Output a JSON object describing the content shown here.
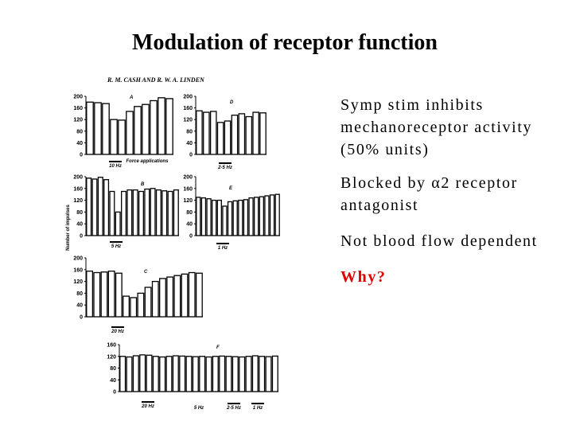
{
  "slide": {
    "title": "Modulation of receptor function",
    "figure_header": "R. M. CASH AND R. W. A. LINDEN",
    "y_axis_label": "Number of impulses",
    "bullets": [
      "Symp stim inhibits mechanoreceptor activity (50% units)",
      "Blocked by α2 receptor antagonist",
      "Not blood flow dependent",
      "Why?"
    ]
  },
  "chart_data": [
    {
      "type": "bar",
      "title": "A",
      "values": [
        180,
        178,
        175,
        120,
        118,
        148,
        165,
        172,
        185,
        195,
        192
      ],
      "ylim": [
        0,
        200
      ],
      "yticks": [
        0,
        40,
        80,
        120,
        160,
        200
      ],
      "annotations": [
        "10 Hz",
        "Force applications"
      ]
    },
    {
      "type": "bar",
      "title": "D",
      "values": [
        150,
        145,
        148,
        110,
        115,
        135,
        140,
        130,
        145,
        143
      ],
      "ylim": [
        0,
        200
      ],
      "yticks": [
        0,
        40,
        80,
        120,
        160,
        200
      ],
      "annotations": [
        "2-5 Hz"
      ]
    },
    {
      "type": "bar",
      "title": "B",
      "values": [
        195,
        192,
        198,
        190,
        150,
        80,
        150,
        155,
        155,
        150,
        158,
        160,
        155,
        152,
        150,
        155
      ],
      "ylim": [
        0,
        200
      ],
      "yticks": [
        0,
        40,
        80,
        120,
        160,
        200
      ],
      "annotations": [
        "5 Hz"
      ]
    },
    {
      "type": "bar",
      "title": "E",
      "values": [
        130,
        128,
        125,
        120,
        120,
        100,
        115,
        118,
        120,
        122,
        128,
        130,
        132,
        135,
        138,
        140
      ],
      "ylim": [
        0,
        200
      ],
      "yticks": [
        0,
        40,
        80,
        120,
        160,
        200
      ],
      "annotations": [
        "1 Hz"
      ]
    },
    {
      "type": "bar",
      "title": "C",
      "values": [
        155,
        150,
        152,
        155,
        148,
        70,
        65,
        80,
        100,
        120,
        130,
        135,
        140,
        145,
        150,
        148
      ],
      "ylim": [
        0,
        200
      ],
      "yticks": [
        0,
        40,
        80,
        120,
        160,
        200
      ],
      "annotations": [
        "20 Hz"
      ]
    },
    {
      "type": "bar",
      "title": "F",
      "values": [
        120,
        118,
        122,
        125,
        124,
        120,
        118,
        120,
        122,
        121,
        120,
        119,
        120,
        118,
        120,
        121,
        120,
        119,
        118,
        120,
        122,
        120,
        119,
        121
      ],
      "ylim": [
        0,
        160
      ],
      "yticks": [
        0,
        40,
        80,
        120,
        160
      ],
      "annotations": [
        "20 Hz",
        "5 Hz",
        "2-5 Hz",
        "1 Hz"
      ]
    }
  ]
}
